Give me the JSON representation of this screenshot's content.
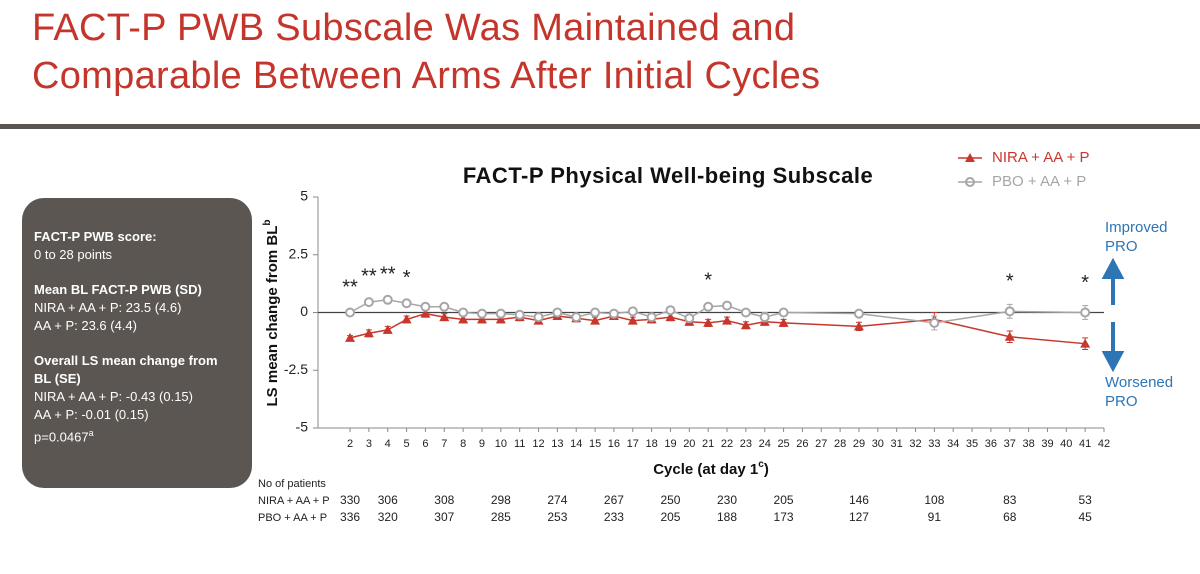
{
  "header": {
    "title": [
      "FACT-P PWB Subscale Was Maintained and",
      "Comparable Between Arms After Initial Cycles"
    ]
  },
  "summary_box": {
    "sections": [
      {
        "heading": "FACT-P PWB score:",
        "lines": [
          "0 to 28 points"
        ]
      },
      {
        "heading": "Mean BL FACT-P PWB (SD)",
        "lines": [
          "NIRA + AA + P: 23.5 (4.6)",
          "AA + P: 23.6 (4.4)"
        ]
      },
      {
        "heading": "Overall LS mean change from BL (SE)",
        "lines": [
          "NIRA + AA + P: -0.43 (0.15)",
          "AA + P: -0.01 (0.15)"
        ]
      }
    ],
    "p_value": "p=0.0467",
    "p_value_sup": "a"
  },
  "chart_data": {
    "type": "line",
    "title": "FACT-P Physical Well-being Subscale",
    "x_label": "Cycle (at day 1",
    "x_label_sup": "c",
    "x_label_close": ")",
    "y_label": "LS mean change from BL",
    "y_label_sup": "b",
    "x": [
      2,
      3,
      4,
      5,
      6,
      7,
      8,
      9,
      10,
      11,
      12,
      13,
      14,
      15,
      16,
      17,
      18,
      19,
      20,
      21,
      22,
      23,
      24,
      25,
      29,
      33,
      37,
      41
    ],
    "series": [
      {
        "name": "NIRA + AA + P",
        "color": "#c8372d",
        "marker": "triangle",
        "values": [
          -1.1,
          -0.9,
          -0.75,
          -0.3,
          -0.05,
          -0.2,
          -0.3,
          -0.3,
          -0.3,
          -0.2,
          -0.35,
          -0.15,
          -0.25,
          -0.35,
          -0.15,
          -0.35,
          -0.3,
          -0.2,
          -0.4,
          -0.45,
          -0.35,
          -0.55,
          -0.4,
          -0.45,
          -0.6,
          -0.3,
          -1.05,
          -1.35
        ],
        "errors": [
          0.1,
          0.15,
          0.15,
          0.15,
          0.15,
          0.15,
          0.15,
          0.15,
          0.15,
          0.15,
          0.15,
          0.15,
          0.15,
          0.15,
          0.15,
          0.15,
          0.15,
          0.15,
          0.15,
          0.15,
          0.15,
          0.15,
          0.15,
          0.15,
          0.18,
          0.3,
          0.25,
          0.25
        ]
      },
      {
        "name": "PBO + AA + P",
        "color": "#a6a6a6",
        "marker": "circle",
        "values": [
          0,
          0.45,
          0.55,
          0.4,
          0.25,
          0.25,
          0,
          -0.05,
          -0.05,
          -0.1,
          -0.2,
          0,
          -0.2,
          0,
          -0.05,
          0.05,
          -0.2,
          0.1,
          -0.25,
          0.25,
          0.3,
          0,
          -0.2,
          0,
          -0.05,
          -0.45,
          0.05,
          0
        ],
        "errors": [
          0.1,
          0.12,
          0.12,
          0.12,
          0.12,
          0.12,
          0.12,
          0.12,
          0.12,
          0.12,
          0.12,
          0.12,
          0.12,
          0.12,
          0.12,
          0.12,
          0.12,
          0.12,
          0.12,
          0.15,
          0.15,
          0.12,
          0.2,
          0.15,
          0.15,
          0.3,
          0.3,
          0.3
        ]
      }
    ],
    "xlim": [
      0.3,
      42
    ],
    "xticks": [
      2,
      3,
      4,
      5,
      6,
      7,
      8,
      9,
      10,
      11,
      12,
      13,
      14,
      15,
      16,
      17,
      18,
      19,
      20,
      21,
      22,
      23,
      24,
      25,
      26,
      27,
      28,
      29,
      30,
      31,
      32,
      33,
      34,
      35,
      36,
      37,
      38,
      39,
      40,
      41,
      42
    ],
    "ylim": [
      -5,
      5
    ],
    "yticks": [
      -5,
      -2.5,
      0,
      2.5,
      5
    ],
    "ref_line": 0,
    "legend": "top-right",
    "annotations": [
      {
        "x": 2,
        "text": "**"
      },
      {
        "x": 3,
        "text": "**"
      },
      {
        "x": 4,
        "text": "**"
      },
      {
        "x": 5,
        "text": "*"
      },
      {
        "x": 21,
        "text": "*"
      },
      {
        "x": 37,
        "text": "*"
      },
      {
        "x": 41,
        "text": "*"
      }
    ],
    "improved_label": [
      "Improved",
      "PRO"
    ],
    "worsened_label": [
      "Worsened",
      "PRO"
    ],
    "arrow_color": "#2e75b6",
    "patients": {
      "title": "No of patients",
      "cycles": [
        2,
        4,
        7,
        10,
        13,
        16,
        19,
        22,
        25,
        29,
        33,
        37,
        41
      ],
      "rows": [
        {
          "name": "NIRA + AA + P",
          "counts": [
            330,
            306,
            308,
            298,
            274,
            267,
            250,
            230,
            205,
            146,
            108,
            83,
            53
          ]
        },
        {
          "name": "PBO + AA + P",
          "counts": [
            336,
            320,
            307,
            285,
            253,
            233,
            205,
            188,
            173,
            127,
            91,
            68,
            45
          ]
        }
      ]
    }
  }
}
